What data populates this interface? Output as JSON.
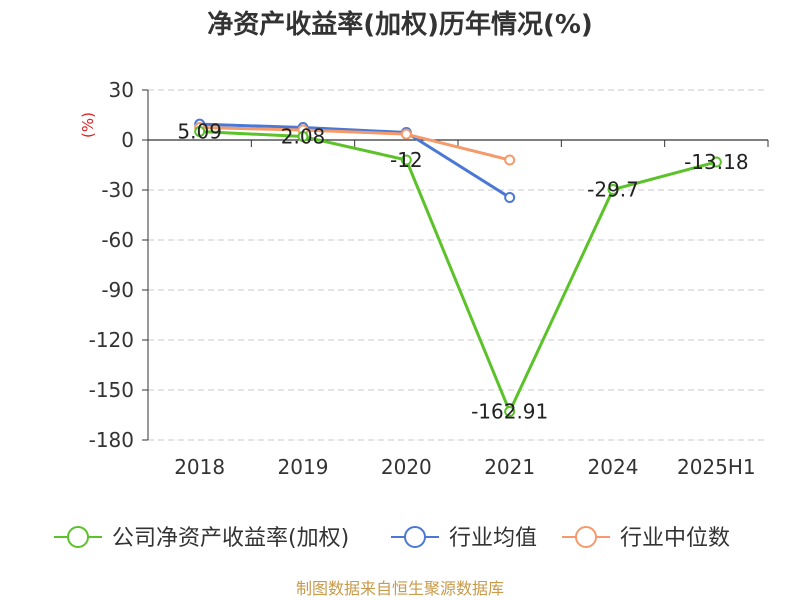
{
  "chart_data": {
    "type": "line",
    "title": "净资产收益率(加权)历年情况(%)",
    "unit_label": "(%)",
    "categories": [
      "2018",
      "2019",
      "2020",
      "2021",
      "2024",
      "2025H1"
    ],
    "ylim": [
      -180,
      30
    ],
    "yticks": [
      30,
      0,
      -30,
      -60,
      -90,
      -120,
      -150,
      -180
    ],
    "grid": true,
    "legend_position": "bottom",
    "series": [
      {
        "name": "公司净资产收益率(加权)",
        "color": "#5cc229",
        "values": [
          5.09,
          2.08,
          -12,
          -162.91,
          -29.7,
          -13.18
        ],
        "labels": [
          "5.09",
          "2.08",
          "-12",
          "-162.91",
          "-29.7",
          "-13.18"
        ]
      },
      {
        "name": "行业均值",
        "color": "#4a78d4",
        "values": [
          9.5,
          7.5,
          4.5,
          -34.5,
          null,
          null
        ]
      },
      {
        "name": "行业中位数",
        "color": "#f59a6a",
        "values": [
          7.5,
          6,
          3.5,
          -12,
          null,
          null
        ]
      }
    ],
    "source": "制图数据来自恒生聚源数据库"
  }
}
